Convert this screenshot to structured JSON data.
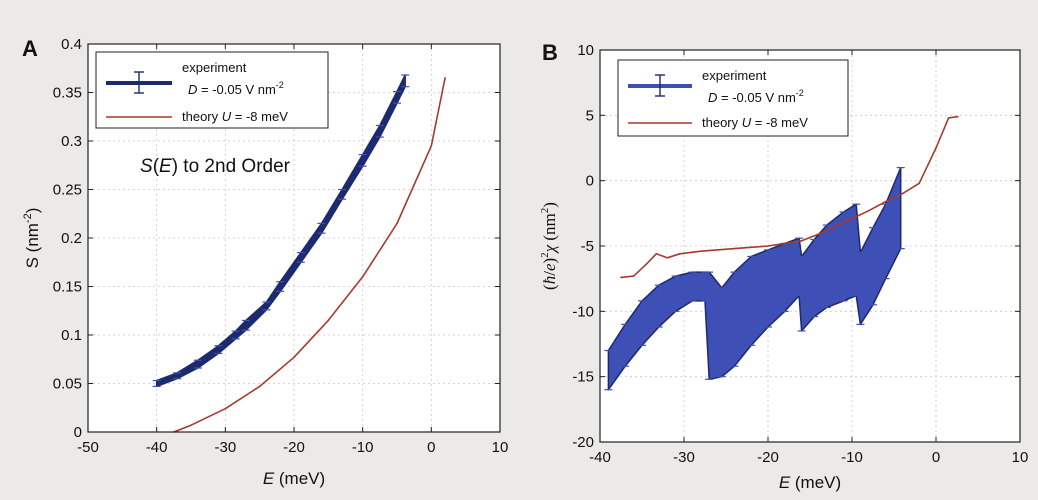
{
  "chart_data": [
    {
      "panel": "A",
      "type": "line",
      "xlabel_var": "E",
      "xlabel_unit": " (meV)",
      "ylabel_var": "S",
      "ylabel_unit": " (nm",
      "ylabel_exp": "-2",
      "ylabel_close": ")",
      "xlim": [
        -50,
        10
      ],
      "ylim": [
        0,
        0.4
      ],
      "xticks": [
        -50,
        -40,
        -30,
        -20,
        -10,
        0,
        10
      ],
      "yticks": [
        0,
        0.05,
        0.1,
        0.15,
        0.2,
        0.25,
        0.3,
        0.35,
        0.4
      ],
      "xtick_labels": [
        "-50",
        "-40",
        "-30",
        "-20",
        "-10",
        "0",
        "10"
      ],
      "ytick_labels": [
        "0",
        "0.05",
        "0.1",
        "0.15",
        "0.2",
        "0.25",
        "0.3",
        "0.35",
        "0.4"
      ],
      "grid": true,
      "legend_position": "top-left",
      "annotation": {
        "italic": "S",
        "open": "(",
        "var": "E",
        "rest": ") to 2nd Order",
        "x": -33,
        "y": 0.3
      },
      "legend": {
        "experiment": "experiment",
        "param_var": "D",
        "param_val": " = -0.05 V nm",
        "param_exp": "-2",
        "theory": "theory",
        "theory_var": "U",
        "theory_val": " = -8 meV"
      },
      "series": [
        {
          "name": "experiment",
          "kind": "errorband",
          "color": "#1c2a6e",
          "x": [
            -40,
            -37,
            -34,
            -31,
            -28.5,
            -27,
            -24,
            -22,
            -19,
            -16,
            -13,
            -10,
            -7.5,
            -5,
            -3.8
          ],
          "y": [
            0.05,
            0.058,
            0.07,
            0.085,
            0.1,
            0.11,
            0.13,
            0.15,
            0.18,
            0.21,
            0.245,
            0.28,
            0.31,
            0.345,
            0.362
          ],
          "err": [
            0.003,
            0.003,
            0.004,
            0.004,
            0.004,
            0.005,
            0.004,
            0.005,
            0.005,
            0.005,
            0.005,
            0.006,
            0.006,
            0.006,
            0.006
          ]
        },
        {
          "name": "theory",
          "kind": "line",
          "color": "#a63a2e",
          "x": [
            -37.5,
            -35,
            -30,
            -25,
            -20,
            -15,
            -10,
            -5,
            0,
            2
          ],
          "y": [
            0,
            0.007,
            0.024,
            0.047,
            0.077,
            0.115,
            0.16,
            0.215,
            0.295,
            0.365
          ]
        }
      ]
    },
    {
      "panel": "B",
      "type": "line",
      "xlabel_var": "E",
      "xlabel_unit": " (meV)",
      "ylabel_open": "(",
      "ylabel_hbar": "ħ",
      "ylabel_slash": "/",
      "ylabel_e": "e",
      "ylabel_close": ")",
      "ylabel_exp": "2",
      "ylabel_chi": "χ",
      "ylabel_unit": " (nm",
      "ylabel_unit_exp": "2",
      "ylabel_unit_close": ")",
      "xlim": [
        -40,
        10
      ],
      "ylim": [
        -20,
        10
      ],
      "xticks": [
        -40,
        -30,
        -20,
        -10,
        0,
        10
      ],
      "yticks": [
        -20,
        -15,
        -10,
        -5,
        0,
        5,
        10
      ],
      "xtick_labels": [
        "-40",
        "-30",
        "-20",
        "-10",
        "0",
        "10"
      ],
      "ytick_labels": [
        "-20",
        "-15",
        "-10",
        "-5",
        "0",
        "5",
        "10"
      ],
      "grid": true,
      "legend_position": "top-left",
      "legend": {
        "experiment": "experiment",
        "param_var": "D",
        "param_val": " = -0.05 V nm",
        "param_exp": "-2",
        "theory": "theory",
        "theory_var": "U",
        "theory_val": " = -8 meV"
      },
      "series": [
        {
          "name": "experiment",
          "kind": "errorband",
          "color": "#3e4fb5",
          "x": [
            -39,
            -37,
            -35,
            -33,
            -31,
            -29,
            -27.5,
            -27,
            -25.5,
            -24,
            -22,
            -20,
            -18,
            -16.3,
            -16,
            -14.5,
            -13,
            -11,
            -9.5,
            -9,
            -7.5,
            -6,
            -4.2
          ],
          "upper": [
            -13,
            -11,
            -9.2,
            -8,
            -7.3,
            -7,
            -7,
            -7,
            -8.2,
            -7,
            -5.8,
            -5.3,
            -4.8,
            -4.4,
            -5.8,
            -4.5,
            -3.4,
            -2.4,
            -1.8,
            -5.5,
            -3.6,
            -1.8,
            1
          ],
          "lower": [
            -16,
            -14.2,
            -12.6,
            -11.2,
            -10,
            -9.2,
            -9.2,
            -15.2,
            -15,
            -14.2,
            -12.6,
            -11.2,
            -10,
            -8.8,
            -11.5,
            -10.4,
            -9.7,
            -9.2,
            -8.8,
            -11,
            -9.5,
            -7.5,
            -5.2
          ]
        },
        {
          "name": "theory",
          "kind": "line",
          "color": "#a63a2e",
          "x": [
            -37.5,
            -36,
            -34.5,
            -33.3,
            -32,
            -30.5,
            -28,
            -24,
            -20,
            -16,
            -14,
            -12,
            -10,
            -8,
            -6,
            -4,
            -2,
            0,
            1.5,
            2.6
          ],
          "y": [
            -7.4,
            -7.3,
            -6.4,
            -5.6,
            -5.9,
            -5.6,
            -5.4,
            -5.2,
            -5.0,
            -4.6,
            -4.1,
            -3.5,
            -2.9,
            -2.3,
            -1.6,
            -1.0,
            -0.2,
            2.5,
            4.8,
            4.9
          ]
        }
      ]
    }
  ]
}
